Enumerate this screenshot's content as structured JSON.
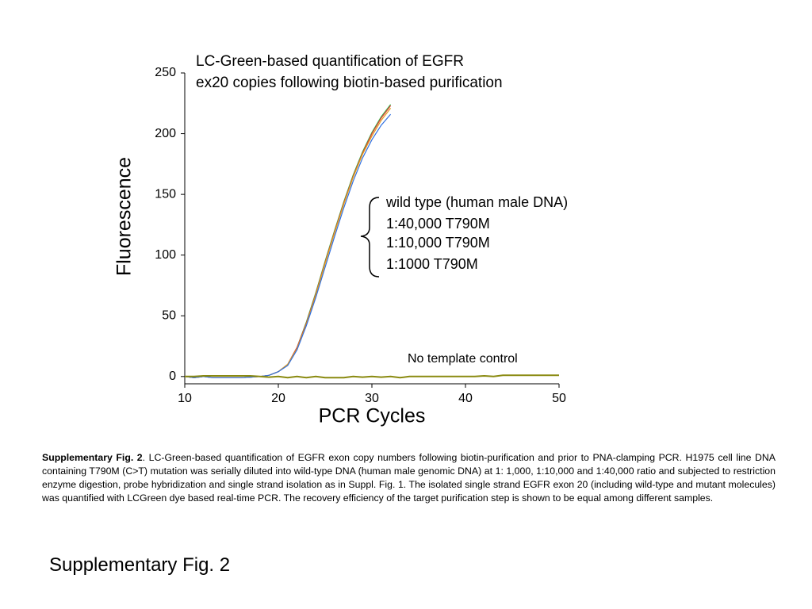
{
  "chart_data": {
    "type": "line",
    "title": [
      "LC-Green-based quantification of EGFR",
      "ex20 copies following biotin-based purification"
    ],
    "x_label": "PCR Cycles",
    "y_label": "Fluorescence",
    "xlim": [
      10,
      50
    ],
    "ylim": [
      -6,
      250
    ],
    "xticks": [
      10,
      20,
      30,
      40,
      50
    ],
    "yticks": [
      0,
      50,
      100,
      150,
      200,
      250
    ],
    "grid": false,
    "series": [
      {
        "name": "wild type (human male DNA)",
        "color": "#2fb84a",
        "x": [
          10,
          11,
          12,
          13,
          14,
          15,
          16,
          17,
          18,
          19,
          20,
          21,
          22,
          23,
          24,
          25,
          26,
          27,
          28,
          29,
          30,
          31,
          32
        ],
        "values": [
          0,
          -1,
          0,
          -1,
          -1,
          -1,
          -1,
          -0.5,
          0,
          1,
          4,
          10,
          24,
          45,
          69,
          95,
          120,
          144,
          166,
          185,
          201,
          214,
          224
        ]
      },
      {
        "name": "1:40,000 T790M",
        "color": "#e53935",
        "x": [
          10,
          11,
          12,
          13,
          14,
          15,
          16,
          17,
          18,
          19,
          20,
          21,
          22,
          23,
          24,
          25,
          26,
          27,
          28,
          29,
          30,
          31,
          32
        ],
        "values": [
          0,
          -1,
          0,
          -1,
          -1,
          -1,
          -1,
          -0.5,
          0,
          1,
          4,
          10,
          24,
          44,
          68,
          94,
          119,
          143,
          165,
          184,
          200,
          213,
          223
        ]
      },
      {
        "name": "1:10,000 T790M",
        "color": "#e0a020",
        "x": [
          10,
          11,
          12,
          13,
          14,
          15,
          16,
          17,
          18,
          19,
          20,
          21,
          22,
          23,
          24,
          25,
          26,
          27,
          28,
          29,
          30,
          31,
          32
        ],
        "values": [
          0,
          -1,
          0,
          -1,
          -1,
          -1,
          -1,
          -0.5,
          0,
          1,
          4,
          10,
          23,
          43,
          67,
          93,
          118,
          142,
          164,
          183,
          198,
          211,
          221
        ]
      },
      {
        "name": "1:1000 T790M",
        "color": "#2f6fe0",
        "x": [
          10,
          11,
          12,
          13,
          14,
          15,
          16,
          17,
          18,
          19,
          20,
          21,
          22,
          23,
          24,
          25,
          26,
          27,
          28,
          29,
          30,
          31,
          32
        ],
        "values": [
          0,
          -1,
          0,
          -1,
          -1,
          -1,
          -1,
          -0.5,
          0,
          1,
          4,
          9,
          22,
          42,
          65,
          90,
          115,
          139,
          161,
          180,
          195,
          207,
          216
        ]
      },
      {
        "name": "No template control",
        "color": "#8a8a10",
        "x": [
          10,
          11,
          12,
          13,
          14,
          15,
          16,
          17,
          18,
          19,
          20,
          21,
          22,
          23,
          24,
          25,
          26,
          27,
          28,
          29,
          30,
          31,
          32,
          33,
          34,
          35,
          36,
          37,
          38,
          39,
          40,
          41,
          42,
          43,
          44,
          45,
          46,
          47,
          48,
          49,
          50
        ],
        "values": [
          0,
          0,
          0.5,
          0.5,
          0.5,
          0.5,
          0.5,
          0.5,
          0,
          -0.5,
          0,
          -1,
          0,
          -1,
          0,
          -1,
          -1,
          -1,
          0,
          -0.5,
          0,
          -0.5,
          0,
          -1,
          0,
          0,
          0,
          0,
          0,
          0,
          0,
          0,
          0.5,
          0,
          1,
          1,
          1,
          1,
          1,
          1,
          1
        ]
      }
    ]
  },
  "caption": {
    "label": "Supplementary Fig. 2",
    "text": ". LC-Green-based quantification of EGFR exon copy numbers following biotin-purification and prior to PNA-clamping PCR. H1975 cell line DNA containing T790M (C>T) mutation was serially diluted into wild-type DNA (human male genomic DNA)  at 1: 1,000, 1:10,000 and 1:40,000 ratio and subjected to restriction enzyme digestion, probe hybridization and single strand isolation as in Suppl. Fig. 1. The isolated single strand EGFR exon 20 (including wild-type and mutant molecules) was quantified with LCGreen dye based real-time PCR. The recovery efficiency of the target purification step is shown to be equal among different samples."
  },
  "footer": "Supplementary Fig. 2"
}
